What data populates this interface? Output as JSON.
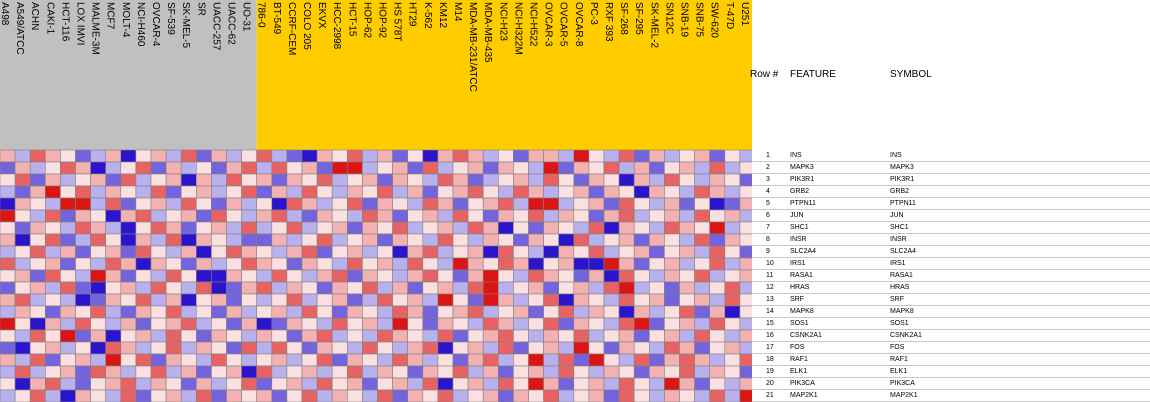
{
  "chart_data": {
    "type": "heatmap",
    "groups": [
      {
        "name": "",
        "color": "#c0c0c0",
        "columns": [
          "A498",
          "A549/ATCC",
          "ACHN",
          "CAKI-1",
          "HCT-116",
          "LOX IMVI",
          "MALME-3M",
          "MCF7",
          "MOLT-4",
          "NCI-H460",
          "OVCAR-4",
          "SF-539",
          "SK-MEL-5",
          "SR",
          "UACC-257",
          "UACC-62",
          "UO-31"
        ]
      },
      {
        "name": "",
        "color": "#ffcc00",
        "columns": [
          "786-0",
          "BT-549",
          "CCRF-CEM",
          "COLO 205",
          "EKVX",
          "HCC-2998",
          "HCT-15",
          "HOP-62",
          "HOP-92",
          "HS 578T",
          "HT29",
          "K-562",
          "KM12",
          "M14",
          "MDA-MB-231/ATCC",
          "MDA-MB-435",
          "NCI-H23",
          "NCI-H322M",
          "NCI-H522",
          "OVCAR-3",
          "OVCAR-5",
          "OVCAR-8",
          "PC-3",
          "RXF 393",
          "SF-268",
          "SF-295",
          "SK-MEL-2",
          "SN12C",
          "SNB-19",
          "SNB-75",
          "SW-620",
          "T-47D",
          "U251"
        ]
      }
    ],
    "table_headers": {
      "row": "Row #",
      "feature": "FEATURE",
      "symbol": "SYMBOL"
    },
    "rows": [
      {
        "n": "1",
        "feature": "INS",
        "symbol": "INS"
      },
      {
        "n": "2",
        "feature": "MAPK3",
        "symbol": "MAPK3"
      },
      {
        "n": "3",
        "feature": "PIK3R1",
        "symbol": "PIK3R1"
      },
      {
        "n": "4",
        "feature": "GRB2",
        "symbol": "GRB2"
      },
      {
        "n": "5",
        "feature": "PTPN11",
        "symbol": "PTPN11"
      },
      {
        "n": "6",
        "feature": "JUN",
        "symbol": "JUN"
      },
      {
        "n": "7",
        "feature": "SHC1",
        "symbol": "SHC1"
      },
      {
        "n": "8",
        "feature": "INSR",
        "symbol": "INSR"
      },
      {
        "n": "9",
        "feature": "SLC2A4",
        "symbol": "SLC2A4"
      },
      {
        "n": "10",
        "feature": "IRS1",
        "symbol": "IRS1"
      },
      {
        "n": "11",
        "feature": "RASA1",
        "symbol": "RASA1"
      },
      {
        "n": "12",
        "feature": "HRAS",
        "symbol": "HRAS"
      },
      {
        "n": "13",
        "feature": "SRF",
        "symbol": "SRF"
      },
      {
        "n": "14",
        "feature": "MAPK8",
        "symbol": "MAPK8"
      },
      {
        "n": "15",
        "feature": "SOS1",
        "symbol": "SOS1"
      },
      {
        "n": "16",
        "feature": "CSNK2A1",
        "symbol": "CSNK2A1"
      },
      {
        "n": "17",
        "feature": "FOS",
        "symbol": "FOS"
      },
      {
        "n": "18",
        "feature": "RAF1",
        "symbol": "RAF1"
      },
      {
        "n": "19",
        "feature": "ELK1",
        "symbol": "ELK1"
      },
      {
        "n": "20",
        "feature": "PIK3CA",
        "symbol": "PIK3CA"
      },
      {
        "n": "21",
        "feature": "MAP2K1",
        "symbol": "MAP2K1"
      }
    ],
    "color_scale": {
      "low": "#1a00c8",
      "mid": "#ffffff",
      "high": "#d80000"
    },
    "values": [
      [
        1,
        -1,
        2,
        1,
        0,
        -2,
        -1,
        1,
        -3,
        0,
        1,
        -1,
        2,
        -2,
        1,
        -1,
        0,
        2,
        -1,
        -2,
        -3,
        1,
        0,
        2,
        -1,
        1,
        -2,
        0,
        -3,
        1,
        2,
        1,
        -1,
        0,
        -2,
        1,
        1,
        -1,
        3,
        0,
        -1,
        2,
        -2,
        1,
        -1,
        0,
        1,
        -2,
        0,
        -1
      ],
      [
        -2,
        1,
        -1,
        0,
        2,
        1,
        -3,
        -1,
        0,
        2,
        -2,
        1,
        -1,
        0,
        -2,
        1,
        2,
        -1,
        2,
        0,
        1,
        -2,
        3,
        3,
        -1,
        0,
        1,
        -2,
        2,
        -1,
        0,
        1,
        -2,
        1,
        0,
        -1,
        3,
        -2,
        1,
        0,
        2,
        -1,
        1,
        -2,
        0,
        1,
        -1,
        2,
        -1,
        0
      ],
      [
        0,
        2,
        -2,
        1,
        -1,
        0,
        1,
        -2,
        2,
        -1,
        0,
        1,
        -3,
        1,
        -1,
        2,
        0,
        1,
        -2,
        1,
        0,
        2,
        -1,
        0,
        1,
        -2,
        1,
        0,
        -1,
        2,
        1,
        -2,
        -1,
        0,
        1,
        -1,
        2,
        0,
        -2,
        1,
        0,
        -3,
        1,
        -1,
        2,
        0,
        -1,
        1,
        0,
        -2
      ],
      [
        -1,
        -2,
        1,
        3,
        0,
        2,
        -1,
        1,
        0,
        -1,
        2,
        -2,
        0,
        1,
        -1,
        0,
        2,
        -2,
        1,
        -1,
        2,
        0,
        -1,
        1,
        0,
        2,
        -1,
        1,
        -2,
        0,
        1,
        2,
        0,
        -1,
        2,
        1,
        -1,
        0,
        1,
        -2,
        1,
        0,
        -3,
        1,
        0,
        -1,
        2,
        1,
        -1,
        0
      ],
      [
        -3,
        1,
        0,
        -1,
        3,
        3,
        -1,
        2,
        -2,
        0,
        1,
        -1,
        2,
        0,
        -2,
        1,
        -1,
        0,
        -3,
        2,
        1,
        -1,
        0,
        2,
        -2,
        1,
        0,
        -1,
        2,
        1,
        -2,
        0,
        1,
        2,
        -1,
        3,
        3,
        -1,
        0,
        1,
        -2,
        2,
        0,
        -1,
        1,
        -2,
        0,
        -3,
        -2,
        1
      ],
      [
        3,
        0,
        -1,
        2,
        -2,
        1,
        0,
        -3,
        1,
        2,
        -1,
        0,
        1,
        -2,
        2,
        0,
        -1,
        1,
        2,
        -1,
        -2,
        1,
        0,
        -1,
        2,
        1,
        -2,
        0,
        1,
        -1,
        2,
        0,
        -2,
        1,
        0,
        2,
        -1,
        1,
        0,
        -2,
        1,
        2,
        -1,
        0,
        1,
        -1,
        2,
        0,
        1,
        -1
      ],
      [
        0,
        -2,
        1,
        0,
        -1,
        2,
        1,
        -1,
        -3,
        0,
        2,
        1,
        -2,
        0,
        1,
        -1,
        2,
        -1,
        0,
        2,
        -1,
        0,
        1,
        -2,
        1,
        0,
        2,
        -1,
        0,
        1,
        -1,
        2,
        1,
        -3,
        0,
        -2,
        1,
        0,
        -1,
        2,
        -3,
        1,
        0,
        -1,
        2,
        1,
        0,
        3,
        -1,
        0
      ],
      [
        1,
        -3,
        0,
        2,
        -2,
        -1,
        2,
        0,
        -3,
        1,
        -1,
        2,
        -3,
        1,
        0,
        -1,
        -2,
        -2,
        1,
        -1,
        0,
        2,
        -1,
        0,
        1,
        -2,
        1,
        0,
        -1,
        2,
        0,
        -1,
        1,
        0,
        -2,
        1,
        0,
        -3,
        2,
        -1,
        0,
        1,
        -2,
        1,
        0,
        -1,
        2,
        -2,
        1,
        0
      ],
      [
        -1,
        0,
        2,
        -1,
        1,
        -2,
        0,
        1,
        -2,
        2,
        0,
        -1,
        1,
        -3,
        0,
        2,
        1,
        0,
        -1,
        1,
        2,
        -2,
        0,
        1,
        -1,
        0,
        -3,
        1,
        2,
        -1,
        0,
        1,
        -3,
        2,
        0,
        -1,
        -3,
        1,
        0,
        2,
        -1,
        0,
        1,
        -2,
        0,
        1,
        -1,
        2,
        0,
        -2
      ],
      [
        2,
        -1,
        0,
        1,
        -2,
        0,
        -1,
        2,
        1,
        -3,
        1,
        0,
        -2,
        1,
        -1,
        0,
        2,
        1,
        0,
        -2,
        1,
        0,
        -1,
        2,
        0,
        1,
        -1,
        2,
        0,
        -1,
        3,
        1,
        0,
        2,
        1,
        -3,
        0,
        1,
        -3,
        -3,
        3,
        1,
        -2,
        0,
        1,
        -1,
        0,
        2,
        -1,
        1
      ],
      [
        0,
        1,
        -2,
        2,
        0,
        -1,
        3,
        1,
        -2,
        0,
        -1,
        2,
        0,
        -3,
        -3,
        1,
        0,
        -1,
        2,
        0,
        -1,
        1,
        2,
        -2,
        1,
        0,
        -1,
        1,
        2,
        0,
        -2,
        1,
        3,
        0,
        -1,
        2,
        1,
        0,
        -2,
        1,
        -3,
        2,
        0,
        -1,
        1,
        0,
        2,
        -1,
        0,
        1
      ],
      [
        -2,
        0,
        1,
        -1,
        2,
        -2,
        -3,
        0,
        1,
        -1,
        2,
        0,
        -1,
        2,
        -3,
        -2,
        1,
        2,
        -1,
        1,
        0,
        -2,
        1,
        0,
        2,
        -1,
        1,
        -2,
        0,
        1,
        -1,
        2,
        3,
        -1,
        0,
        1,
        -2,
        0,
        1,
        -1,
        2,
        3,
        -1,
        0,
        -2,
        1,
        -1,
        0,
        2,
        -1
      ],
      [
        1,
        2,
        -1,
        0,
        -1,
        -3,
        -2,
        1,
        0,
        2,
        -1,
        1,
        -3,
        0,
        1,
        -2,
        0,
        -1,
        0,
        2,
        -1,
        0,
        1,
        -2,
        -1,
        2,
        0,
        1,
        -1,
        3,
        0,
        -2,
        3,
        1,
        -1,
        0,
        2,
        -3,
        1,
        0,
        -1,
        2,
        0,
        1,
        -2,
        0,
        1,
        -1,
        2,
        0
      ],
      [
        -1,
        1,
        0,
        -2,
        1,
        0,
        2,
        -1,
        -2,
        1,
        0,
        2,
        -1,
        0,
        -2,
        1,
        -1,
        0,
        1,
        -1,
        2,
        0,
        -2,
        1,
        0,
        -1,
        2,
        1,
        -2,
        0,
        1,
        2,
        -1,
        0,
        1,
        -2,
        0,
        2,
        -1,
        1,
        0,
        -3,
        1,
        -1,
        0,
        2,
        -2,
        1,
        -3,
        0
      ],
      [
        3,
        0,
        -3,
        1,
        -1,
        2,
        0,
        -1,
        1,
        -2,
        0,
        1,
        2,
        -1,
        0,
        -2,
        1,
        -3,
        -2,
        1,
        0,
        -1,
        2,
        0,
        1,
        -1,
        3,
        0,
        -2,
        1,
        0,
        -1,
        2,
        1,
        -1,
        0,
        2,
        -2,
        1,
        0,
        -1,
        2,
        3,
        -2,
        0,
        1,
        -1,
        2,
        0,
        -1
      ],
      [
        0,
        -1,
        2,
        0,
        3,
        -2,
        1,
        -3,
        0,
        1,
        -1,
        2,
        0,
        -2,
        1,
        0,
        -1,
        1,
        0,
        -2,
        1,
        2,
        -1,
        0,
        -1,
        2,
        1,
        0,
        -1,
        2,
        -2,
        0,
        1,
        2,
        0,
        -1,
        1,
        0,
        2,
        -1,
        0,
        1,
        -2,
        0,
        1,
        -1,
        2,
        0,
        -1,
        1
      ],
      [
        -2,
        -3,
        0,
        1,
        -1,
        0,
        -3,
        2,
        1,
        -1,
        0,
        2,
        -1,
        1,
        0,
        -2,
        2,
        -1,
        2,
        0,
        -2,
        1,
        0,
        -1,
        2,
        0,
        -1,
        1,
        2,
        -3,
        0,
        1,
        -1,
        2,
        -2,
        0,
        1,
        -1,
        3,
        0,
        -2,
        1,
        0,
        -1,
        2,
        1,
        -2,
        0,
        1,
        -1
      ],
      [
        1,
        -1,
        2,
        -2,
        0,
        1,
        -1,
        3,
        0,
        2,
        -2,
        1,
        0,
        -1,
        2,
        0,
        -1,
        0,
        1,
        -1,
        0,
        2,
        -2,
        1,
        0,
        -1,
        2,
        1,
        -1,
        0,
        -2,
        1,
        2,
        -1,
        0,
        3,
        -1,
        2,
        -2,
        3,
        0,
        -1,
        2,
        -2,
        1,
        2,
        1,
        -1,
        0,
        2
      ],
      [
        -1,
        2,
        -1,
        0,
        1,
        -2,
        2,
        1,
        -1,
        0,
        2,
        -1,
        1,
        -2,
        0,
        1,
        -3,
        2,
        -1,
        0,
        1,
        -1,
        0,
        2,
        -1,
        1,
        0,
        -2,
        1,
        0,
        2,
        -1,
        1,
        -2,
        0,
        1,
        -1,
        2,
        0,
        -1,
        1,
        0,
        -2,
        1,
        0,
        2,
        -1,
        1,
        0,
        -2
      ],
      [
        0,
        -3,
        1,
        2,
        -1,
        -2,
        0,
        1,
        2,
        -1,
        1,
        0,
        -2,
        1,
        -1,
        0,
        2,
        -2,
        0,
        1,
        -1,
        2,
        0,
        1,
        -2,
        0,
        1,
        -1,
        2,
        -3,
        0,
        1,
        -1,
        2,
        0,
        3,
        1,
        -2,
        0,
        1,
        -1,
        2,
        0,
        -1,
        3,
        1,
        -2,
        0,
        -1,
        1
      ],
      [
        -1,
        0,
        2,
        -1,
        -3,
        1,
        0,
        -1,
        2,
        -2,
        0,
        1,
        -1,
        2,
        -2,
        1,
        0,
        1,
        -2,
        0,
        2,
        -1,
        1,
        0,
        -1,
        2,
        -2,
        1,
        0,
        2,
        -1,
        0,
        1,
        -2,
        1,
        0,
        2,
        -1,
        0,
        1,
        -2,
        2,
        0,
        -1,
        1,
        0,
        -1,
        2,
        -1,
        3
      ]
    ]
  }
}
